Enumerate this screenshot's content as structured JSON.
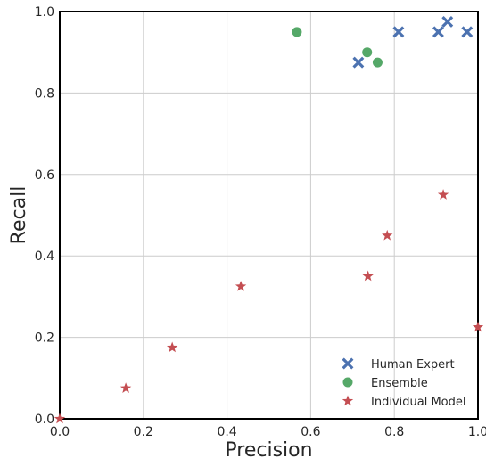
{
  "chart_data": {
    "type": "scatter",
    "title": "",
    "xlabel": "Precision",
    "ylabel": "Recall",
    "xlim": [
      0.0,
      1.0
    ],
    "ylim": [
      0.0,
      1.0
    ],
    "x_ticks": [
      "0.0",
      "0.2",
      "0.4",
      "0.6",
      "0.8",
      "1.0"
    ],
    "y_ticks": [
      "0.0",
      "0.2",
      "0.4",
      "0.6",
      "0.8",
      "1.0"
    ],
    "grid": true,
    "legend_position": "bottom-right",
    "series": [
      {
        "name": "Human Expert",
        "marker": "x-cross",
        "color": "#4C72B0",
        "points": [
          {
            "x": 0.714,
            "y": 0.875
          },
          {
            "x": 0.81,
            "y": 0.95
          },
          {
            "x": 0.905,
            "y": 0.95
          },
          {
            "x": 0.927,
            "y": 0.975
          },
          {
            "x": 0.974,
            "y": 0.95
          }
        ]
      },
      {
        "name": "Ensemble",
        "marker": "circle",
        "color": "#55A868",
        "points": [
          {
            "x": 0.567,
            "y": 0.95
          },
          {
            "x": 0.735,
            "y": 0.9
          },
          {
            "x": 0.76,
            "y": 0.875
          }
        ]
      },
      {
        "name": "Individual Model",
        "marker": "star",
        "color": "#C44E52",
        "points": [
          {
            "x": 0.0,
            "y": 0.0
          },
          {
            "x": 0.158,
            "y": 0.075
          },
          {
            "x": 0.269,
            "y": 0.175
          },
          {
            "x": 0.433,
            "y": 0.325
          },
          {
            "x": 0.737,
            "y": 0.35
          },
          {
            "x": 0.783,
            "y": 0.45
          },
          {
            "x": 0.917,
            "y": 0.55
          },
          {
            "x": 1.0,
            "y": 0.225
          }
        ]
      }
    ]
  }
}
